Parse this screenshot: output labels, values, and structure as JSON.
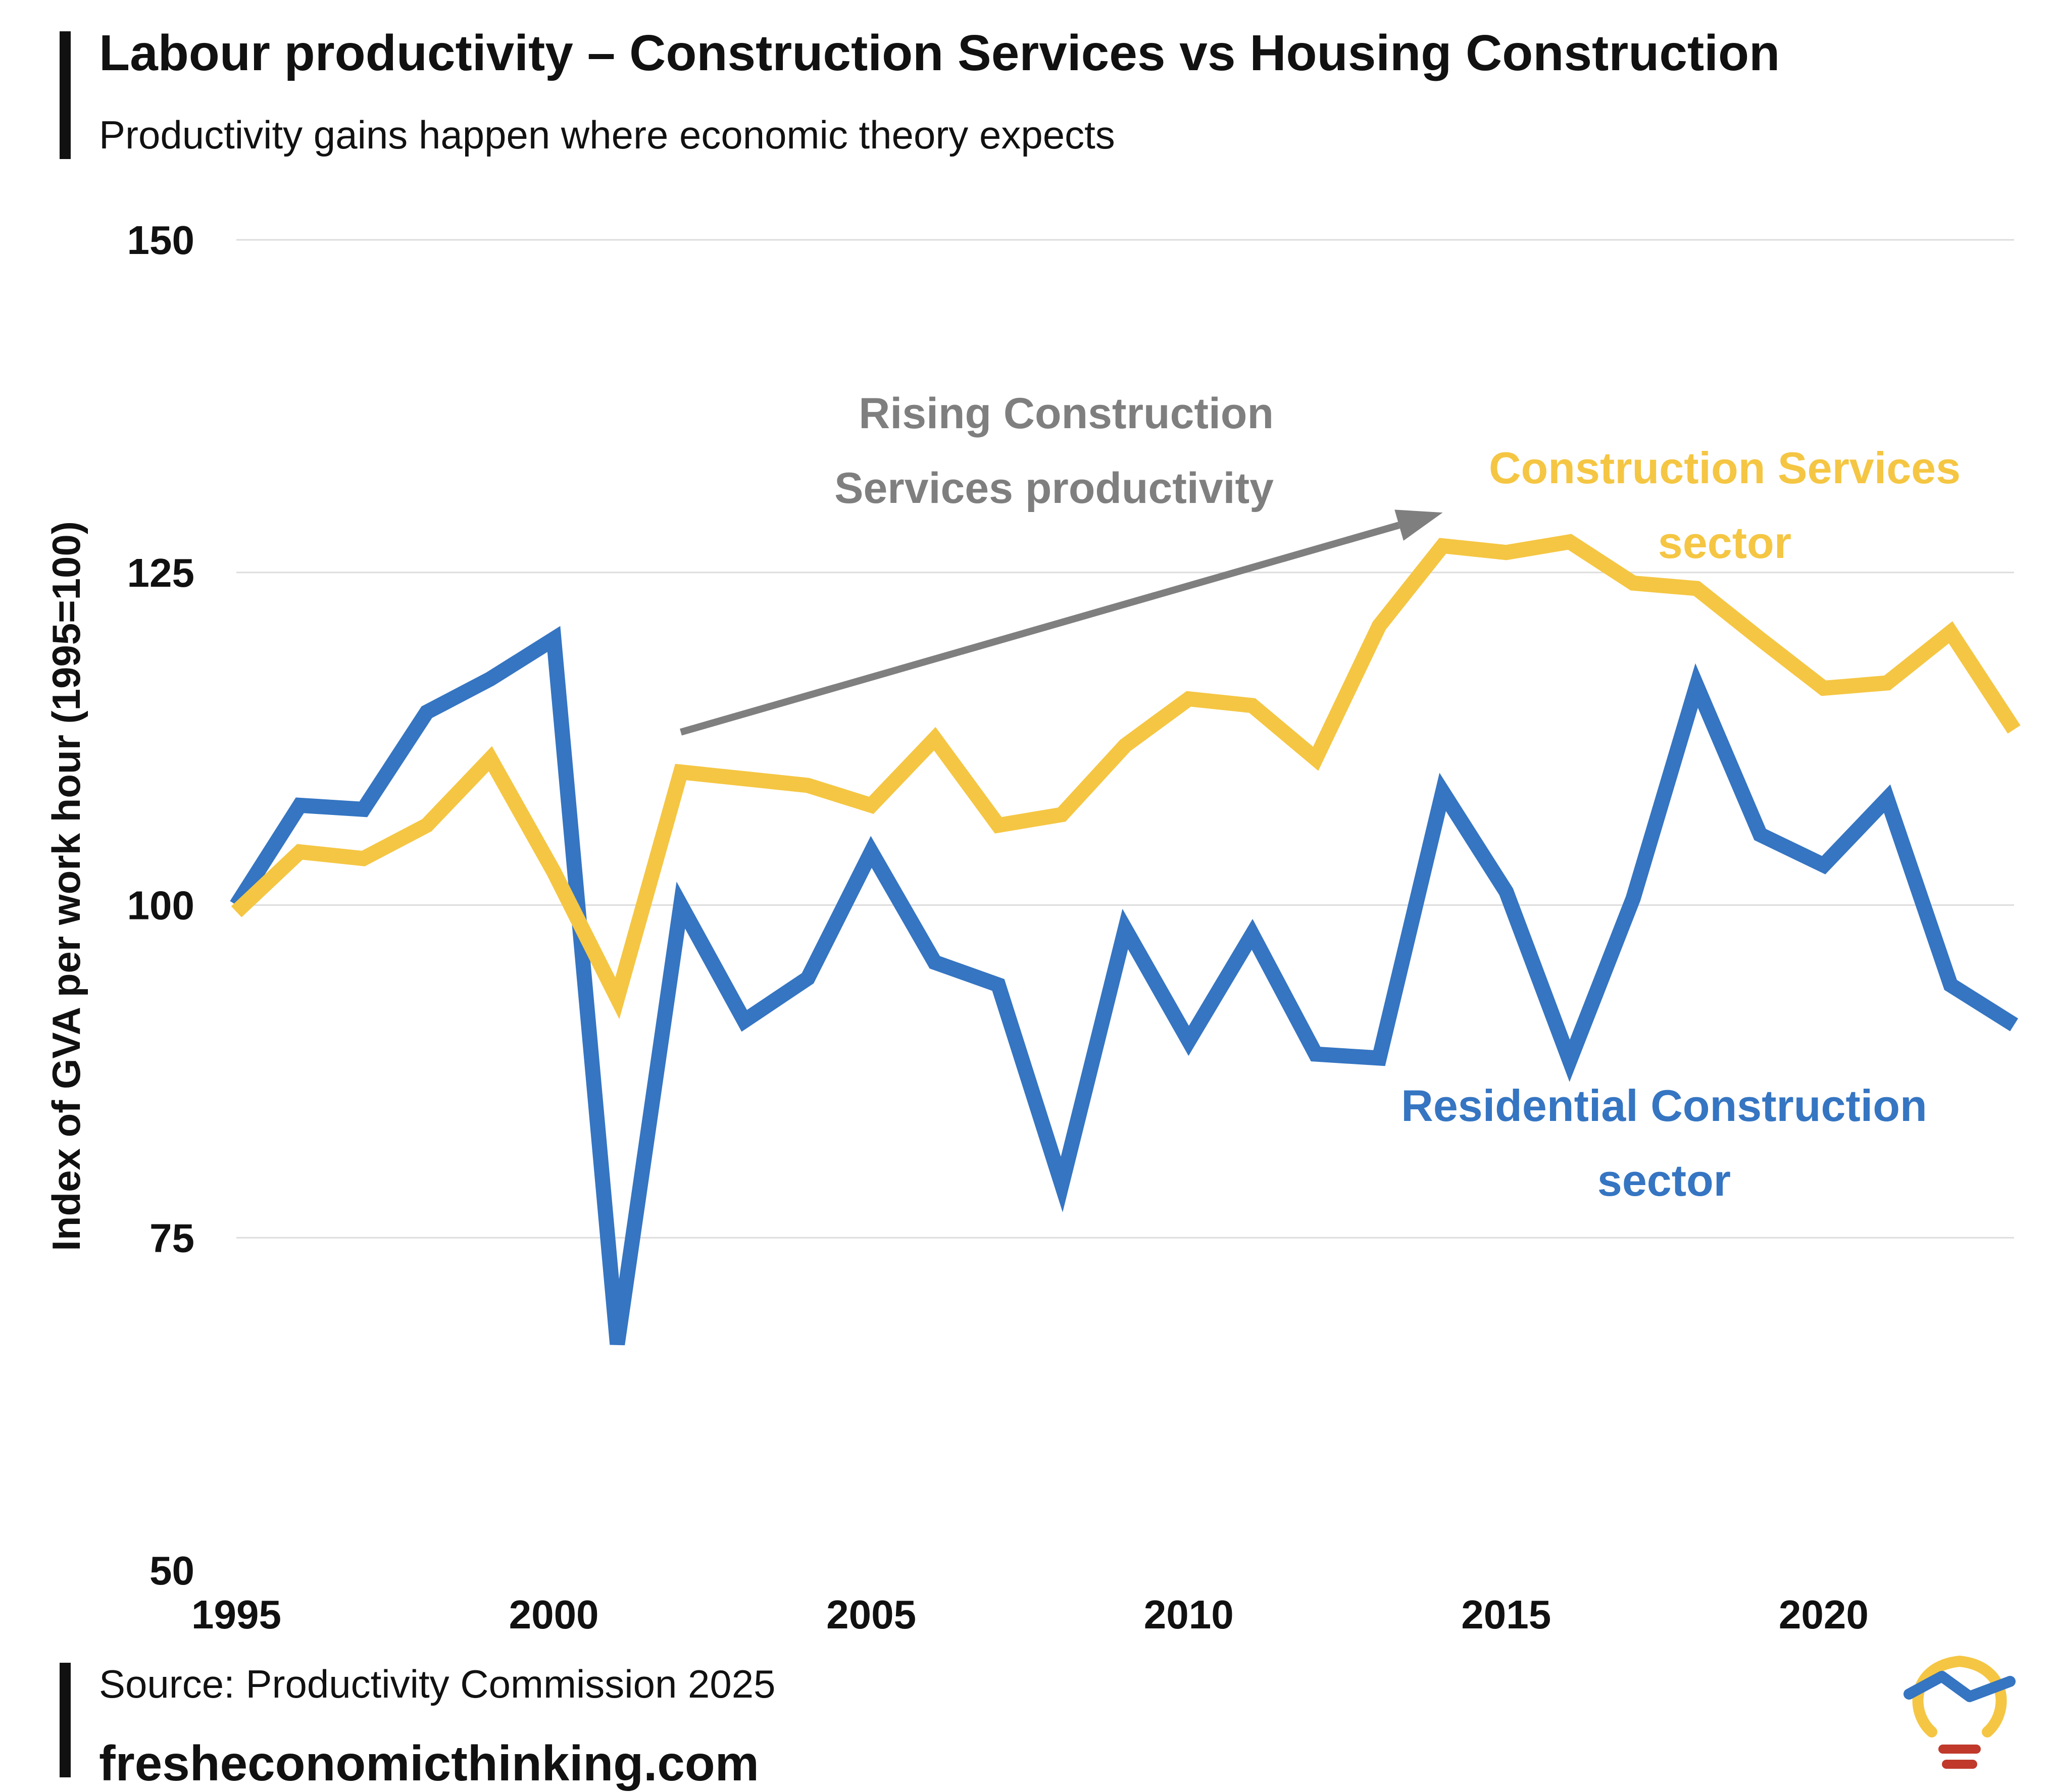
{
  "header": {
    "title": "Labour productivity – Construction Services vs Housing Construction",
    "subtitle": "Productivity gains happen where economic theory expects"
  },
  "footer": {
    "source": "Source: Productivity Commission 2025",
    "website": "fresheconomicthinking.com"
  },
  "colors": {
    "construction_services": "#F5C643",
    "residential": "#3575C2",
    "arrow": "#7F7F7F",
    "grid": "#DDDDDD",
    "logo_bulb": "#F5C643",
    "logo_line": "#3575C2",
    "logo_base": "#C0392B"
  },
  "chart_data": {
    "type": "line",
    "title": "Labour productivity – Construction Services vs Housing Construction",
    "ylabel": "Index of GVA per work hour (1995=100)",
    "xlabel": "",
    "xlim": [
      1995,
      2023
    ],
    "ylim": [
      50,
      150
    ],
    "x_ticks": [
      1995,
      2000,
      2005,
      2010,
      2015,
      2020
    ],
    "y_ticks": [
      50,
      75,
      100,
      125,
      150
    ],
    "grid": true,
    "x": [
      1995,
      1996,
      1997,
      1998,
      1999,
      2000,
      2001,
      2002,
      2003,
      2004,
      2005,
      2006,
      2007,
      2008,
      2009,
      2010,
      2011,
      2012,
      2013,
      2014,
      2015,
      2016,
      2017,
      2018,
      2019,
      2020,
      2021,
      2022,
      2023
    ],
    "series": [
      {
        "name": "Construction Services sector",
        "label_lines": [
          "Construction Services",
          "sector"
        ],
        "color_key": "construction_services",
        "values": [
          99.5,
          104,
          103.5,
          106,
          111,
          102.5,
          93,
          110,
          109.5,
          109,
          107.5,
          112.5,
          106,
          106.8,
          112,
          115.5,
          115,
          111,
          121,
          127,
          126.5,
          127.3,
          124.2,
          123.8,
          120,
          116.3,
          116.7,
          120.5,
          113.2
        ]
      },
      {
        "name": "Residential Construction sector",
        "label_lines": [
          "Residential Construction",
          "sector"
        ],
        "color_key": "residential",
        "values": [
          100,
          107.5,
          107.2,
          114.5,
          117,
          120,
          67,
          100,
          91.3,
          94.5,
          104,
          95.7,
          94,
          79,
          98.2,
          89.8,
          97.8,
          88.8,
          88.5,
          108.5,
          101,
          88.3,
          100.5,
          116.5,
          105.3,
          103,
          108,
          94,
          91
        ]
      }
    ],
    "annotations": [
      {
        "text_lines": [
          "Rising Construction",
          "Services productivity"
        ],
        "arrow_from": [
          2002,
          113
        ],
        "arrow_to": [
          2014,
          129.5
        ]
      }
    ]
  }
}
